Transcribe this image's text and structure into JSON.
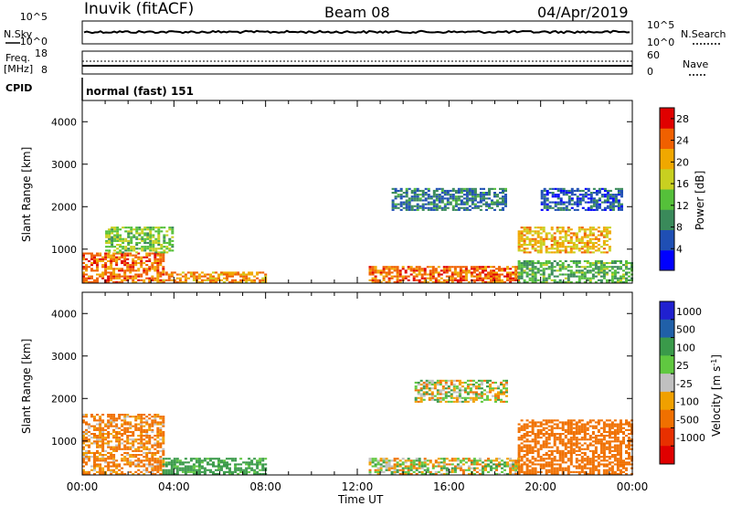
{
  "header": {
    "station": "Inuvik (fitACF)",
    "beam": "Beam 08",
    "date": "04/Apr/2019"
  },
  "status_panels": {
    "nsky_label": "N.Sky",
    "nsky_ticks": [
      "10^5",
      "10^0"
    ],
    "nsearch_label": "N.Search",
    "nsearch_ticks": [
      "10^5",
      "10^0"
    ],
    "freq_label_line1": "Freq.",
    "freq_label_line2": "[MHz]",
    "freq_ticks": [
      "18",
      "8"
    ],
    "nave_label": "Nave",
    "nave_ticks": [
      "60",
      "0"
    ],
    "cpid_label": "CPID",
    "cpid_text": "normal (fast) 151"
  },
  "colors": {
    "power_scale": [
      "#0000ff",
      "#1f4fb4",
      "#3a8a5a",
      "#55c03a",
      "#c8d020",
      "#f0a800",
      "#f06000",
      "#e00000"
    ],
    "velocity_scale": [
      "#2020d0",
      "#2060a8",
      "#3a9a4a",
      "#60c840",
      "#c0c0c0",
      "#f0a000",
      "#f07000",
      "#e83000",
      "#e00000"
    ]
  },
  "chart_data": [
    {
      "type": "heatmap",
      "name": "power",
      "xlabel": "Time UT",
      "ylabel": "Slant Range [km]",
      "x_ticks": [
        "00:00",
        "04:00",
        "08:00",
        "12:00",
        "16:00",
        "20:00",
        "00:00"
      ],
      "y_ticks": [
        1000,
        2000,
        3000,
        4000
      ],
      "ylim": [
        200,
        4500
      ],
      "colorbar_label": "Power [dB]",
      "colorbar_ticks": [
        4,
        8,
        12,
        16,
        20,
        24,
        28
      ],
      "colorbar_range": [
        0,
        30
      ],
      "regions": [
        {
          "t": [
            0.0,
            3.5
          ],
          "r": [
            200,
            900
          ],
          "level": 24
        },
        {
          "t": [
            1.0,
            4.0
          ],
          "r": [
            900,
            1500
          ],
          "level": 14
        },
        {
          "t": [
            3.5,
            8.0
          ],
          "r": [
            200,
            450
          ],
          "level": 22
        },
        {
          "t": [
            12.5,
            19.0
          ],
          "r": [
            200,
            600
          ],
          "level": 24
        },
        {
          "t": [
            19.0,
            24.0
          ],
          "r": [
            200,
            700
          ],
          "level": 12
        },
        {
          "t": [
            19.0,
            23.0
          ],
          "r": [
            900,
            1500
          ],
          "level": 20
        },
        {
          "t": [
            13.5,
            18.5
          ],
          "r": [
            1900,
            2400
          ],
          "level": 8
        },
        {
          "t": [
            20.0,
            23.5
          ],
          "r": [
            1900,
            2400
          ],
          "level": 6
        }
      ]
    },
    {
      "type": "heatmap",
      "name": "velocity",
      "xlabel": "Time UT",
      "ylabel": "Slant Range [km]",
      "x_ticks": [
        "00:00",
        "04:00",
        "08:00",
        "12:00",
        "16:00",
        "20:00",
        "00:00"
      ],
      "y_ticks": [
        1000,
        2000,
        3000,
        4000
      ],
      "ylim": [
        200,
        4500
      ],
      "colorbar_label": "Velocity [m s^-1]",
      "colorbar_ticks": [
        "1000",
        "500",
        "100",
        "25",
        "-25",
        "-100",
        "-500",
        "-1000"
      ],
      "regions": [
        {
          "t": [
            0.0,
            3.5
          ],
          "r": [
            200,
            1600
          ],
          "level": -150
        },
        {
          "t": [
            3.5,
            8.0
          ],
          "r": [
            200,
            600
          ],
          "level": 200
        },
        {
          "t": [
            12.5,
            19.0
          ],
          "r": [
            200,
            600
          ],
          "level": 0
        },
        {
          "t": [
            19.0,
            24.0
          ],
          "r": [
            200,
            1500
          ],
          "level": -300
        },
        {
          "t": [
            14.5,
            18.5
          ],
          "r": [
            1900,
            2400
          ],
          "level": 0
        }
      ]
    }
  ]
}
